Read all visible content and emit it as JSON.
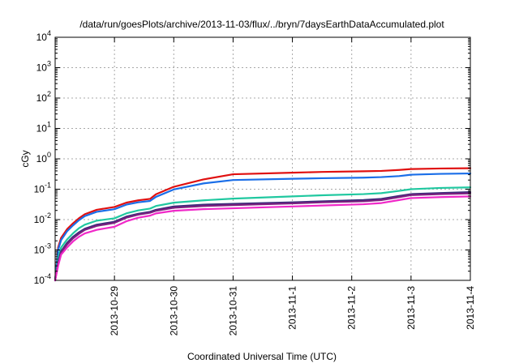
{
  "chart_data": {
    "type": "line",
    "title": "/data/run/goesPlots/archive/2013-11-03/flux/../bryn/7daysEarthDataAccumulated.plot",
    "xlabel": "Coordinated Universal Time (UTC)",
    "ylabel": "cGy",
    "y_scale": "log",
    "ylim": [
      0.0001,
      10000
    ],
    "y_ticks": [
      {
        "value": 0.0001,
        "base": "10",
        "exp": "-4"
      },
      {
        "value": 0.001,
        "base": "10",
        "exp": "-3"
      },
      {
        "value": 0.01,
        "base": "10",
        "exp": "-2"
      },
      {
        "value": 0.1,
        "base": "10",
        "exp": "-1"
      },
      {
        "value": 1,
        "base": "10",
        "exp": "0"
      },
      {
        "value": 10,
        "base": "10",
        "exp": "1"
      },
      {
        "value": 100,
        "base": "10",
        "exp": "2"
      },
      {
        "value": 1000,
        "base": "10",
        "exp": "3"
      },
      {
        "value": 10000,
        "base": "10",
        "exp": "4"
      }
    ],
    "x_range": [
      "2013-10-28T00:00",
      "2013-11-04T00:00"
    ],
    "x_ticks": [
      "2013-10-29",
      "2013-10-30",
      "2013-10-31",
      "2013-11-1",
      "2013-11-2",
      "2013-11-3",
      "2013-11-4"
    ],
    "grid": true,
    "legend": "none",
    "series": [
      {
        "color": "#e01010",
        "points": [
          [
            "2013-10-28T00:00",
            0.0001
          ],
          [
            "2013-10-28T01:12",
            0.0012
          ],
          [
            "2013-10-28T02:24",
            0.0025
          ],
          [
            "2013-10-28T04:48",
            0.0048
          ],
          [
            "2013-10-28T07:12",
            0.0075
          ],
          [
            "2013-10-28T09:36",
            0.011
          ],
          [
            "2013-10-28T12:00",
            0.015
          ],
          [
            "2013-10-28T16:48",
            0.021
          ],
          [
            "2013-10-29T00:00",
            0.026
          ],
          [
            "2013-10-29T04:48",
            0.036
          ],
          [
            "2013-10-29T09:36",
            0.043
          ],
          [
            "2013-10-29T14:24",
            0.048
          ],
          [
            "2013-10-29T16:48",
            0.068
          ],
          [
            "2013-10-30T00:00",
            0.12
          ],
          [
            "2013-10-30T12:00",
            0.21
          ],
          [
            "2013-10-31T00:00",
            0.31
          ],
          [
            "2013-11-01T00:00",
            0.35
          ],
          [
            "2013-11-01T12:00",
            0.37
          ],
          [
            "2013-11-02T04:48",
            0.39
          ],
          [
            "2013-11-02T12:00",
            0.4
          ],
          [
            "2013-11-02T19:12",
            0.43
          ],
          [
            "2013-11-03T00:00",
            0.46
          ],
          [
            "2013-11-03T12:00",
            0.48
          ],
          [
            "2013-11-04T00:00",
            0.49
          ]
        ]
      },
      {
        "color": "#1a6ee8",
        "points": [
          [
            "2013-10-28T00:00",
            0.0001
          ],
          [
            "2013-10-28T01:12",
            0.001
          ],
          [
            "2013-10-28T02:24",
            0.0021
          ],
          [
            "2013-10-28T04:48",
            0.0041
          ],
          [
            "2013-10-28T07:12",
            0.0064
          ],
          [
            "2013-10-28T09:36",
            0.0095
          ],
          [
            "2013-10-28T12:00",
            0.013
          ],
          [
            "2013-10-28T16:48",
            0.018
          ],
          [
            "2013-10-29T00:00",
            0.022
          ],
          [
            "2013-10-29T04:48",
            0.031
          ],
          [
            "2013-10-29T09:36",
            0.037
          ],
          [
            "2013-10-29T14:24",
            0.041
          ],
          [
            "2013-10-29T16:48",
            0.056
          ],
          [
            "2013-10-30T00:00",
            0.098
          ],
          [
            "2013-10-30T12:00",
            0.155
          ],
          [
            "2013-10-31T00:00",
            0.2
          ],
          [
            "2013-11-01T00:00",
            0.22
          ],
          [
            "2013-11-01T12:00",
            0.23
          ],
          [
            "2013-11-02T04:48",
            0.24
          ],
          [
            "2013-11-02T12:00",
            0.25
          ],
          [
            "2013-11-02T19:12",
            0.27
          ],
          [
            "2013-11-03T00:00",
            0.3
          ],
          [
            "2013-11-03T12:00",
            0.32
          ],
          [
            "2013-11-04T00:00",
            0.33
          ]
        ]
      },
      {
        "color": "#20c8a0",
        "points": [
          [
            "2013-10-28T00:00",
            0.0001
          ],
          [
            "2013-10-28T01:12",
            0.00055
          ],
          [
            "2013-10-28T02:24",
            0.0012
          ],
          [
            "2013-10-28T04:48",
            0.0022
          ],
          [
            "2013-10-28T07:12",
            0.0035
          ],
          [
            "2013-10-28T09:36",
            0.0052
          ],
          [
            "2013-10-28T12:00",
            0.0068
          ],
          [
            "2013-10-28T16:48",
            0.0092
          ],
          [
            "2013-10-29T00:00",
            0.011
          ],
          [
            "2013-10-29T04:48",
            0.016
          ],
          [
            "2013-10-29T09:36",
            0.02
          ],
          [
            "2013-10-29T14:24",
            0.023
          ],
          [
            "2013-10-29T16:48",
            0.028
          ],
          [
            "2013-10-30T00:00",
            0.036
          ],
          [
            "2013-10-30T12:00",
            0.043
          ],
          [
            "2013-10-31T00:00",
            0.049
          ],
          [
            "2013-11-01T00:00",
            0.058
          ],
          [
            "2013-11-01T12:00",
            0.063
          ],
          [
            "2013-11-02T04:48",
            0.069
          ],
          [
            "2013-11-02T12:00",
            0.074
          ],
          [
            "2013-11-02T19:12",
            0.088
          ],
          [
            "2013-11-03T00:00",
            0.1
          ],
          [
            "2013-11-03T12:00",
            0.11
          ],
          [
            "2013-11-04T00:00",
            0.115
          ]
        ]
      },
      {
        "color": "#3a2b7a",
        "points": [
          [
            "2013-10-28T00:00",
            0.0001
          ],
          [
            "2013-10-28T01:12",
            0.0004
          ],
          [
            "2013-10-28T02:24",
            0.0009
          ],
          [
            "2013-10-28T04:48",
            0.0017
          ],
          [
            "2013-10-28T07:12",
            0.0027
          ],
          [
            "2013-10-28T09:36",
            0.0038
          ],
          [
            "2013-10-28T12:00",
            0.005
          ],
          [
            "2013-10-28T16:48",
            0.0068
          ],
          [
            "2013-10-29T00:00",
            0.0085
          ],
          [
            "2013-10-29T04:48",
            0.0125
          ],
          [
            "2013-10-29T09:36",
            0.0155
          ],
          [
            "2013-10-29T14:24",
            0.018
          ],
          [
            "2013-10-29T16:48",
            0.021
          ],
          [
            "2013-10-30T00:00",
            0.027
          ],
          [
            "2013-10-30T12:00",
            0.031
          ],
          [
            "2013-10-31T00:00",
            0.033
          ],
          [
            "2013-11-01T00:00",
            0.037
          ],
          [
            "2013-11-01T12:00",
            0.04
          ],
          [
            "2013-11-02T04:48",
            0.044
          ],
          [
            "2013-11-02T12:00",
            0.048
          ],
          [
            "2013-11-02T19:12",
            0.06
          ],
          [
            "2013-11-03T00:00",
            0.069
          ],
          [
            "2013-11-03T12:00",
            0.075
          ],
          [
            "2013-11-04T00:00",
            0.08
          ]
        ]
      },
      {
        "color": "#7b1f7f",
        "points": [
          [
            "2013-10-28T00:00",
            0.0001
          ],
          [
            "2013-10-28T01:12",
            0.00036
          ],
          [
            "2013-10-28T02:24",
            0.00082
          ],
          [
            "2013-10-28T04:48",
            0.0015
          ],
          [
            "2013-10-28T07:12",
            0.0024
          ],
          [
            "2013-10-28T09:36",
            0.0034
          ],
          [
            "2013-10-28T12:00",
            0.0046
          ],
          [
            "2013-10-28T16:48",
            0.0062
          ],
          [
            "2013-10-29T00:00",
            0.0078
          ],
          [
            "2013-10-29T04:48",
            0.0115
          ],
          [
            "2013-10-29T09:36",
            0.0145
          ],
          [
            "2013-10-29T14:24",
            0.0168
          ],
          [
            "2013-10-29T16:48",
            0.0195
          ],
          [
            "2013-10-30T00:00",
            0.0245
          ],
          [
            "2013-10-30T12:00",
            0.028
          ],
          [
            "2013-10-31T00:00",
            0.03
          ],
          [
            "2013-11-01T00:00",
            0.034
          ],
          [
            "2013-11-01T12:00",
            0.037
          ],
          [
            "2013-11-02T04:48",
            0.04
          ],
          [
            "2013-11-02T12:00",
            0.044
          ],
          [
            "2013-11-02T19:12",
            0.055
          ],
          [
            "2013-11-03T00:00",
            0.064
          ],
          [
            "2013-11-03T12:00",
            0.069
          ],
          [
            "2013-11-04T00:00",
            0.073
          ]
        ]
      },
      {
        "color": "#f028c8",
        "points": [
          [
            "2013-10-28T00:00",
            0.0001
          ],
          [
            "2013-10-28T01:12",
            0.0003
          ],
          [
            "2013-10-28T02:24",
            0.0007
          ],
          [
            "2013-10-28T04:48",
            0.0012
          ],
          [
            "2013-10-28T07:12",
            0.0019
          ],
          [
            "2013-10-28T09:36",
            0.0027
          ],
          [
            "2013-10-28T12:00",
            0.0035
          ],
          [
            "2013-10-28T16:48",
            0.0046
          ],
          [
            "2013-10-29T00:00",
            0.0058
          ],
          [
            "2013-10-29T04:48",
            0.0088
          ],
          [
            "2013-10-29T09:36",
            0.0115
          ],
          [
            "2013-10-29T14:24",
            0.0135
          ],
          [
            "2013-10-29T16:48",
            0.016
          ],
          [
            "2013-10-30T00:00",
            0.0195
          ],
          [
            "2013-10-30T12:00",
            0.022
          ],
          [
            "2013-10-31T00:00",
            0.0235
          ],
          [
            "2013-11-01T00:00",
            0.027
          ],
          [
            "2013-11-01T12:00",
            0.029
          ],
          [
            "2013-11-02T04:48",
            0.032
          ],
          [
            "2013-11-02T12:00",
            0.035
          ],
          [
            "2013-11-02T19:12",
            0.044
          ],
          [
            "2013-11-03T00:00",
            0.051
          ],
          [
            "2013-11-03T12:00",
            0.055
          ],
          [
            "2013-11-04T00:00",
            0.058
          ]
        ]
      }
    ]
  }
}
